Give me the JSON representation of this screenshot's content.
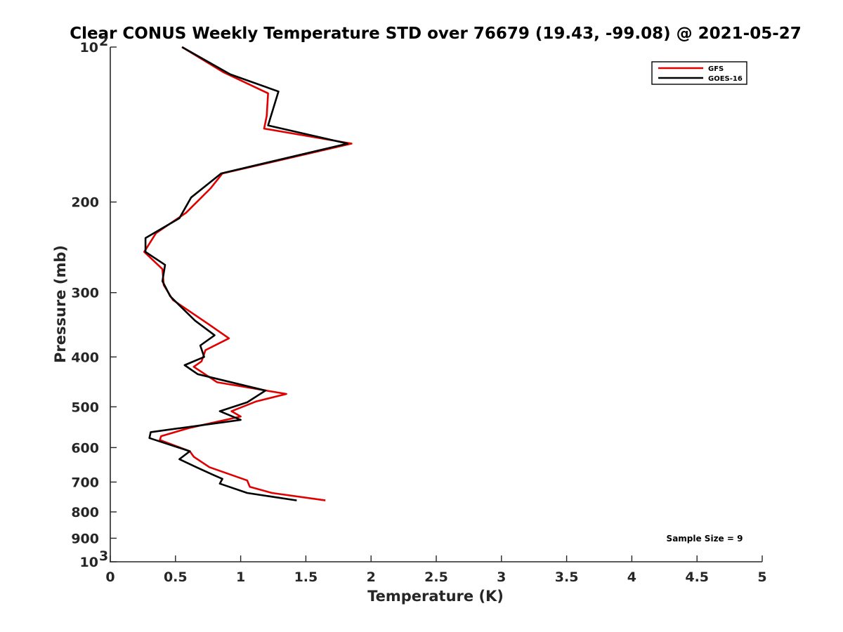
{
  "chart_data": {
    "type": "line",
    "title": "Clear CONUS Weekly Temperature STD over 76679 (19.43, -99.08) @ 2021-05-27",
    "xlabel": "Temperature (K)",
    "ylabel": "Pressure (mb)",
    "xlim": [
      0,
      5
    ],
    "ylim": [
      100,
      1000
    ],
    "y_scale": "log",
    "y_reversed": true,
    "x_ticks": [
      "0",
      "0.5",
      "1",
      "1.5",
      "2",
      "2.5",
      "3",
      "3.5",
      "4",
      "4.5",
      "5"
    ],
    "y_ticks": [
      {
        "value": 100,
        "base": "10",
        "exp": "2"
      },
      {
        "value": 200,
        "label": "200"
      },
      {
        "value": 300,
        "label": "300"
      },
      {
        "value": 400,
        "label": "400"
      },
      {
        "value": 500,
        "label": "500"
      },
      {
        "value": 600,
        "label": "600"
      },
      {
        "value": 700,
        "label": "700"
      },
      {
        "value": 800,
        "label": "800"
      },
      {
        "value": 900,
        "label": "900"
      },
      {
        "value": 1000,
        "base": "10",
        "exp": "3"
      }
    ],
    "grid": false,
    "legend_position": "top-right",
    "series": [
      {
        "name": "GFS",
        "color": "#e00000",
        "x": [
          0.55,
          0.87,
          1.21,
          1.2,
          1.18,
          1.85,
          0.86,
          0.77,
          0.58,
          0.35,
          0.26,
          0.4,
          0.41,
          0.48,
          0.75,
          0.91,
          0.73,
          0.7,
          0.64,
          0.82,
          1.35,
          1.12,
          0.93,
          1.0,
          0.6,
          0.39,
          0.38,
          0.61,
          0.64,
          0.76,
          1.05,
          1.07,
          1.24,
          1.65
        ],
        "y": [
          100,
          112,
          123,
          136,
          144,
          154,
          176,
          188,
          210,
          230,
          250,
          270,
          290,
          310,
          345,
          368,
          388,
          408,
          418,
          448,
          472,
          488,
          510,
          522,
          550,
          570,
          580,
          610,
          625,
          655,
          695,
          715,
          735,
          760
        ]
      },
      {
        "name": "GOES-16",
        "color": "#000000",
        "x": [
          0.55,
          0.92,
          1.29,
          1.21,
          1.82,
          0.85,
          0.62,
          0.53,
          0.27,
          0.27,
          0.42,
          0.4,
          0.46,
          0.65,
          0.8,
          0.69,
          0.72,
          0.57,
          0.67,
          1.19,
          1.05,
          0.84,
          1.0,
          0.31,
          0.3,
          0.61,
          0.53,
          0.66,
          0.79,
          0.86,
          0.84,
          1.05,
          1.43
        ],
        "y": [
          100,
          113,
          122,
          142,
          154,
          176,
          196,
          215,
          235,
          250,
          265,
          285,
          305,
          340,
          363,
          380,
          400,
          415,
          432,
          465,
          490,
          510,
          530,
          560,
          575,
          610,
          632,
          655,
          678,
          690,
          705,
          735,
          760
        ]
      }
    ],
    "annotations": [
      "Sample Size = 9"
    ]
  }
}
